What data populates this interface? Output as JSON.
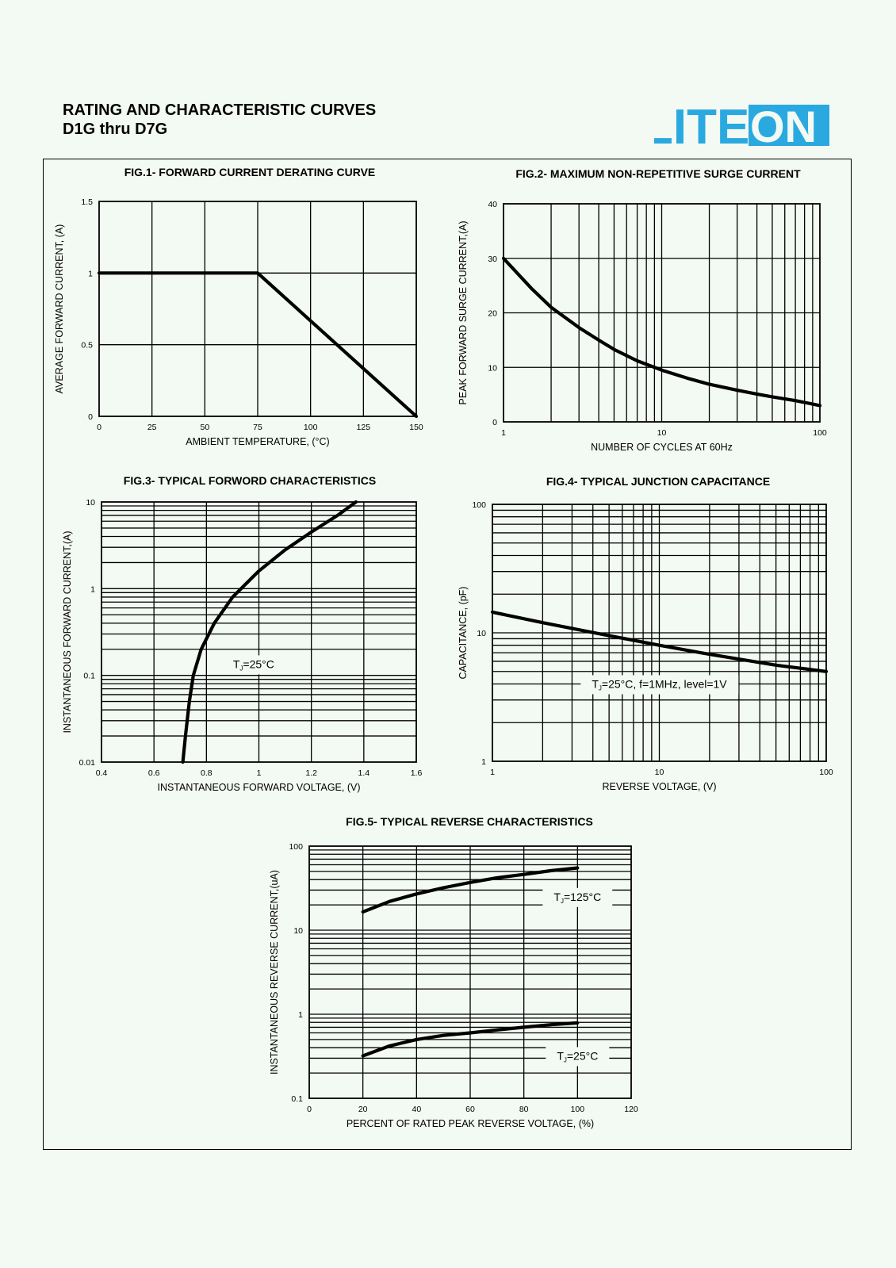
{
  "header": {
    "title": "RATING AND CHARACTERISTIC CURVES",
    "subtitle": "D1G thru D7G",
    "logo_text": "LITEON",
    "logo_color": "#2aa9e0"
  },
  "chart_data": [
    {
      "type": "line",
      "title": "FIG.1- FORWARD CURRENT DERATING CURVE",
      "xlabel": "AMBIENT TEMPERATURE, (°C)",
      "ylabel": "AVERAGE FORWARD CURRENT, (A)",
      "xscale": "linear",
      "yscale": "linear",
      "xlim": [
        0,
        150
      ],
      "ylim": [
        0,
        1.5
      ],
      "xticks": [
        0,
        25,
        50,
        75,
        100,
        125,
        150
      ],
      "yticks": [
        0,
        0.5,
        1,
        1.5
      ],
      "grid": true,
      "series": [
        {
          "x": [
            0,
            75,
            150
          ],
          "y": [
            1,
            1,
            0
          ]
        }
      ]
    },
    {
      "type": "line",
      "title": "FIG.2- MAXIMUM NON-REPETITIVE SURGE CURRENT",
      "xlabel": "NUMBER OF CYCLES AT 60Hz",
      "ylabel": "PEAK FORWARD SURGE CURRENT,(A)",
      "xscale": "log",
      "yscale": "linear",
      "xlim": [
        1,
        100
      ],
      "ylim": [
        0,
        40
      ],
      "xticks": [
        1,
        10,
        100
      ],
      "yticks": [
        0,
        10,
        20,
        30,
        40
      ],
      "grid": true,
      "series": [
        {
          "x": [
            1,
            1.5,
            2,
            3,
            4,
            5,
            7,
            10,
            15,
            20,
            30,
            40,
            50,
            70,
            100
          ],
          "y": [
            30,
            24.5,
            21,
            17.3,
            15,
            13.3,
            11.2,
            9.5,
            7.9,
            6.9,
            5.8,
            5.1,
            4.6,
            3.9,
            3
          ]
        }
      ]
    },
    {
      "type": "line",
      "title": "FIG.3- TYPICAL FORWORD CHARACTERISTICS",
      "xlabel": "INSTANTANEOUS FORWARD VOLTAGE, (V)",
      "ylabel": "INSTANTANEOUS FORWARD CURRENT,(A)",
      "xscale": "linear",
      "yscale": "log",
      "xlim": [
        0.4,
        1.6
      ],
      "ylim": [
        0.01,
        10
      ],
      "xticks": [
        0.4,
        0.6,
        0.8,
        1,
        1.2,
        1.4,
        1.6
      ],
      "yticks": [
        0.01,
        0.1,
        1,
        10
      ],
      "grid": true,
      "series": [
        {
          "x": [
            0.71,
            0.72,
            0.735,
            0.75,
            0.78,
            0.83,
            0.9,
            1.0,
            1.1,
            1.2,
            1.3,
            1.37
          ],
          "y": [
            0.01,
            0.02,
            0.05,
            0.1,
            0.2,
            0.4,
            0.8,
            1.6,
            2.8,
            4.5,
            7,
            10
          ]
        }
      ],
      "annotations": [
        {
          "text": "T",
          "sub": "J",
          "rest": "=25°C",
          "x": 0.98,
          "y": 0.135
        }
      ]
    },
    {
      "type": "line",
      "title": "FIG.4- TYPICAL JUNCTION CAPACITANCE",
      "xlabel": "REVERSE VOLTAGE, (V)",
      "ylabel": "CAPACITANCE, (pF)",
      "xscale": "log",
      "yscale": "log",
      "xlim": [
        1,
        100
      ],
      "ylim": [
        1,
        100
      ],
      "xticks": [
        1,
        10,
        100
      ],
      "yticks": [
        1,
        10,
        100
      ],
      "grid": true,
      "series": [
        {
          "x": [
            1,
            2,
            5,
            10,
            20,
            50,
            100
          ],
          "y": [
            14.5,
            12,
            9.5,
            8,
            6.8,
            5.6,
            5
          ]
        }
      ],
      "annotations": [
        {
          "text": "T",
          "sub": "J",
          "rest": "=25°C, f=1MHz, level=1V",
          "x": 10,
          "y": 4
        }
      ]
    },
    {
      "type": "line",
      "title": "FIG.5- TYPICAL REVERSE CHARACTERISTICS",
      "xlabel": "PERCENT OF RATED PEAK REVERSE VOLTAGE, (%)",
      "ylabel": "INSTANTANEOUS REVERSE CURRENT,(uA)",
      "xscale": "linear",
      "yscale": "log",
      "xlim": [
        0,
        120
      ],
      "ylim": [
        0.1,
        100
      ],
      "xticks": [
        0,
        20,
        40,
        60,
        80,
        100,
        120
      ],
      "yticks": [
        0.1,
        1,
        10,
        100
      ],
      "grid": true,
      "series": [
        {
          "x": [
            20,
            30,
            40,
            50,
            60,
            70,
            80,
            90,
            100
          ],
          "y": [
            16.5,
            22,
            27,
            32,
            37,
            42,
            46,
            51,
            55
          ]
        },
        {
          "x": [
            20,
            30,
            40,
            50,
            60,
            70,
            80,
            90,
            100
          ],
          "y": [
            0.32,
            0.42,
            0.5,
            0.56,
            0.6,
            0.65,
            0.7,
            0.75,
            0.79
          ]
        }
      ],
      "annotations": [
        {
          "text": "T",
          "sub": "J",
          "rest": "=125°C",
          "x": 100,
          "y": 25
        },
        {
          "text": "T",
          "sub": "J",
          "rest": "=25°C",
          "x": 100,
          "y": 0.32
        }
      ]
    }
  ]
}
